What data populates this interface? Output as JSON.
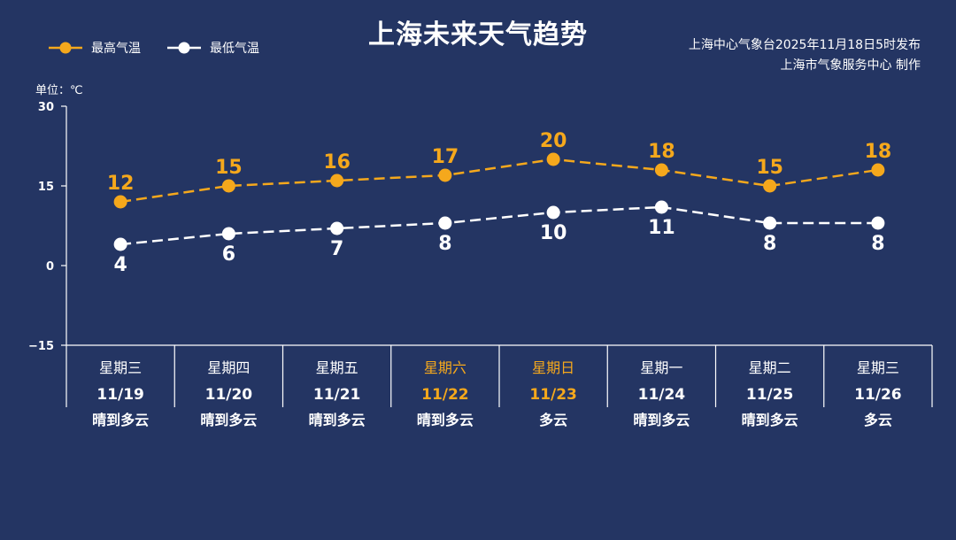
{
  "title": "上海未来天气趋势",
  "source_line1": "上海中心气象台2025年11月18日5时发布",
  "source_line2": "上海市气象服务中心  制作",
  "unit_label": "单位：℃",
  "colors": {
    "background": "#243563",
    "high": "#f5a81c",
    "low": "#ffffff",
    "weekend": "#f5a81c",
    "text": "#ffffff"
  },
  "chart_data": {
    "type": "line",
    "yticks": [
      "30",
      "15",
      "0",
      "−15"
    ],
    "ylim": [
      -15,
      30
    ],
    "series": [
      {
        "name": "最高气温",
        "values": [
          12,
          15,
          16,
          17,
          20,
          18,
          15,
          18
        ]
      },
      {
        "name": "最低气温",
        "values": [
          4,
          6,
          7,
          8,
          10,
          11,
          8,
          8
        ]
      }
    ],
    "days": [
      {
        "weekday": "星期三",
        "date": "11/19",
        "weather": "晴到多云",
        "weekend": false
      },
      {
        "weekday": "星期四",
        "date": "11/20",
        "weather": "晴到多云",
        "weekend": false
      },
      {
        "weekday": "星期五",
        "date": "11/21",
        "weather": "晴到多云",
        "weekend": false
      },
      {
        "weekday": "星期六",
        "date": "11/22",
        "weather": "晴到多云",
        "weekend": true
      },
      {
        "weekday": "星期日",
        "date": "11/23",
        "weather": "多云",
        "weekend": true
      },
      {
        "weekday": "星期一",
        "date": "11/24",
        "weather": "晴到多云",
        "weekend": false
      },
      {
        "weekday": "星期二",
        "date": "11/25",
        "weather": "晴到多云",
        "weekend": false
      },
      {
        "weekday": "星期三",
        "date": "11/26",
        "weather": "多云",
        "weekend": false
      }
    ]
  }
}
